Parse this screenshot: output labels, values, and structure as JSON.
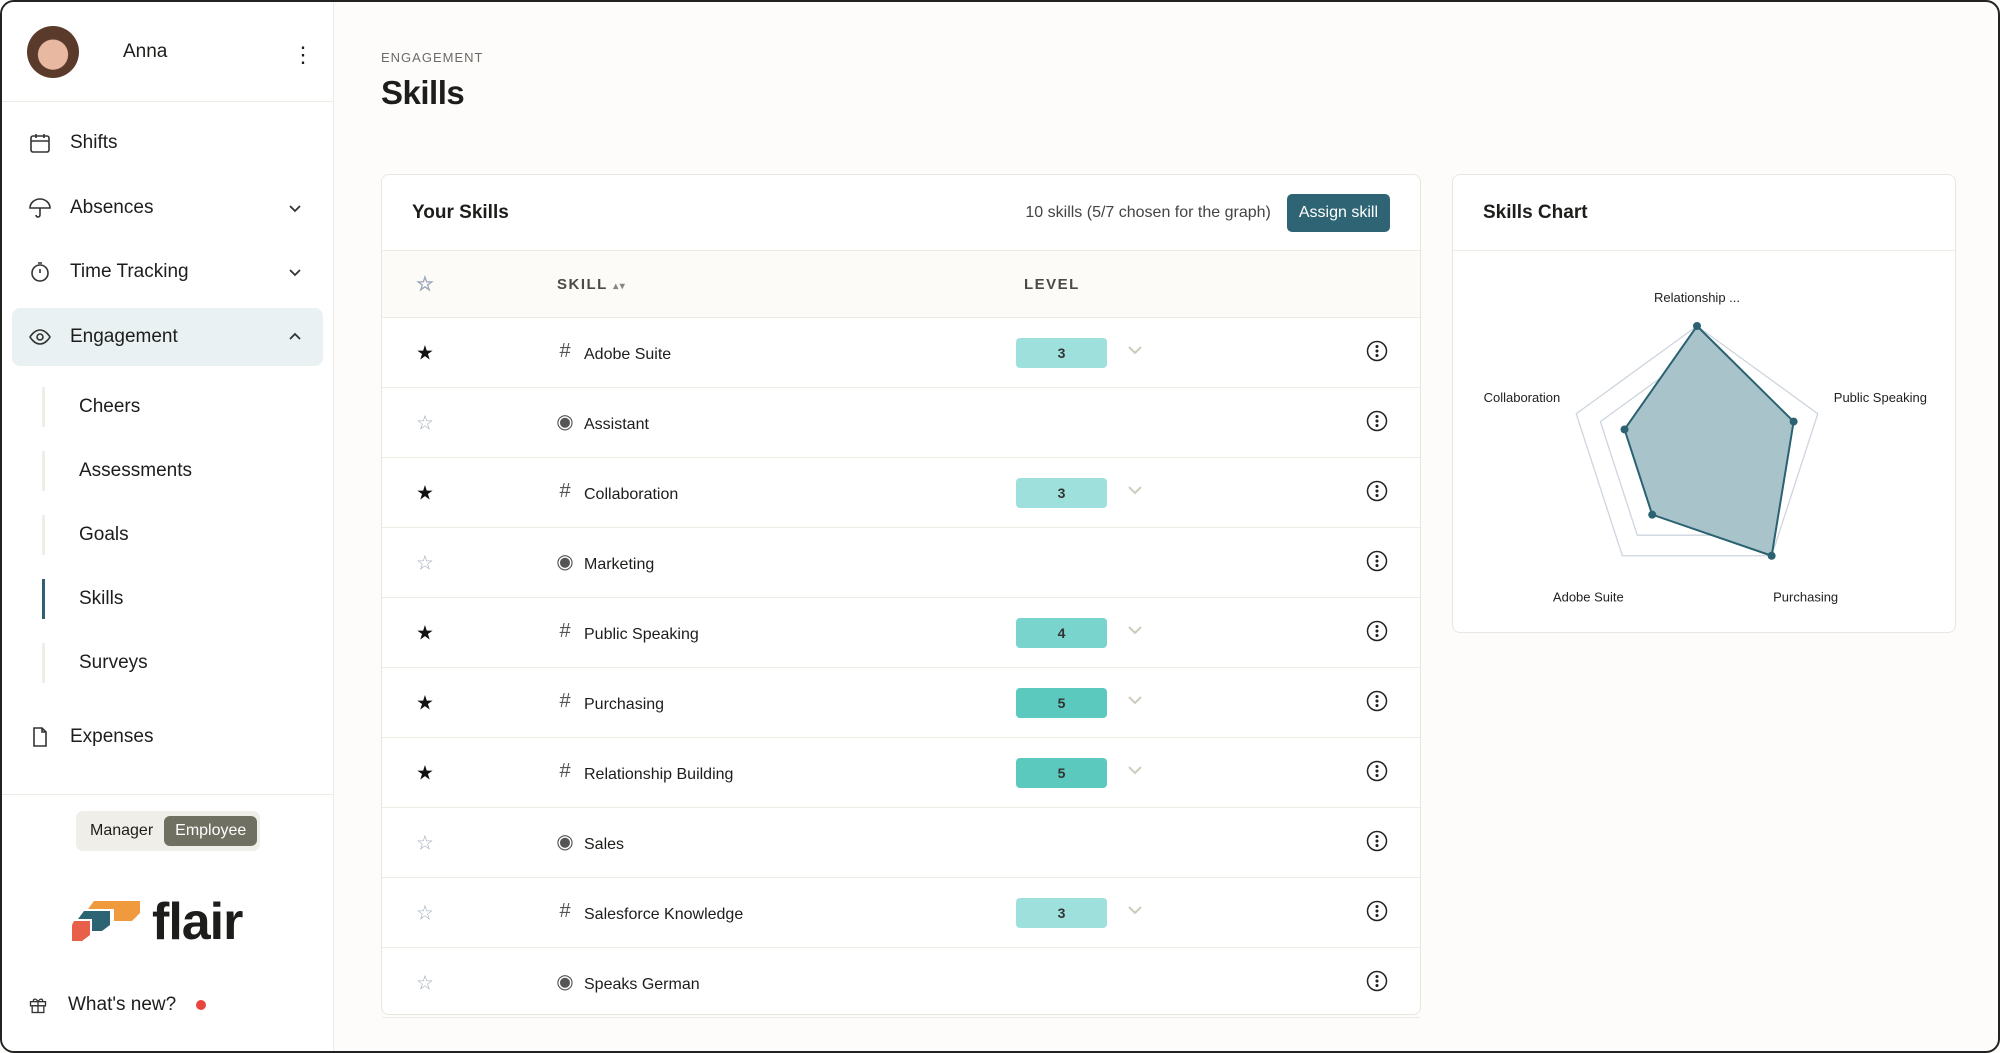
{
  "user": {
    "name": "Anna"
  },
  "nav": [
    {
      "label": "Shifts",
      "icon": "calendar-icon"
    },
    {
      "label": "Absences",
      "icon": "umbrella-icon",
      "expandable": true
    },
    {
      "label": "Time Tracking",
      "icon": "stopwatch-icon",
      "expandable": true
    },
    {
      "label": "Engagement",
      "icon": "eye-icon",
      "expanded": true,
      "active": true
    }
  ],
  "subnav": [
    "Cheers",
    "Assessments",
    "Goals",
    "Skills",
    "Surveys"
  ],
  "nav_expenses": "Expenses",
  "role_toggle": {
    "options": [
      "Manager",
      "Employee"
    ],
    "selected": "Employee"
  },
  "logo_text": "flair",
  "whats_new": "What's new?",
  "page": {
    "breadcrumb": "ENGAGEMENT",
    "title": "Skills"
  },
  "skills_card": {
    "title": "Your Skills",
    "count_text": "10 skills (5/7 chosen for the graph)",
    "assign_label": "Assign skill",
    "columns": {
      "skill": "SKILL",
      "level": "LEVEL"
    },
    "rows": [
      {
        "name": "Adobe Suite",
        "starred": true,
        "type": "hash",
        "level": "3"
      },
      {
        "name": "Assistant",
        "starred": false,
        "type": "target",
        "level": null
      },
      {
        "name": "Collaboration",
        "starred": true,
        "type": "hash",
        "level": "3"
      },
      {
        "name": "Marketing",
        "starred": false,
        "type": "target",
        "level": null
      },
      {
        "name": "Public Speaking",
        "starred": true,
        "type": "hash",
        "level": "4"
      },
      {
        "name": "Purchasing",
        "starred": true,
        "type": "hash",
        "level": "5"
      },
      {
        "name": "Relationship Building",
        "starred": true,
        "type": "hash",
        "level": "5"
      },
      {
        "name": "Sales",
        "starred": false,
        "type": "target",
        "level": null
      },
      {
        "name": "Salesforce Knowledge",
        "starred": false,
        "type": "hash",
        "level": "3"
      },
      {
        "name": "Speaks German",
        "starred": false,
        "type": "target",
        "level": null
      }
    ]
  },
  "level_colors": {
    "3": "#9de0dc",
    "4": "#78d4cc",
    "5": "#5cc9bf"
  },
  "chart_card": {
    "title": "Skills Chart"
  },
  "chart_data": {
    "type": "radar",
    "categories": [
      "Relationship ...",
      "Public Speaking",
      "Purchasing",
      "Adobe Suite",
      "Collaboration"
    ],
    "values": [
      5,
      4,
      5,
      3,
      3
    ],
    "rlim": [
      0,
      5
    ],
    "fill": "#a9c3ca",
    "stroke": "#2a6272",
    "grid": true
  }
}
